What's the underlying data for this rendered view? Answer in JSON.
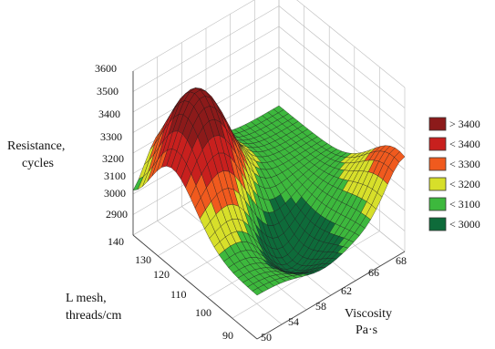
{
  "chart_data": {
    "type": "surface3d",
    "title": "",
    "zlabel_lines": [
      "Resistance,",
      "cycles"
    ],
    "ylabel_lines": [
      "L mesh,",
      "threads/cm"
    ],
    "xlabel_lines": [
      "Viscosity",
      "Pa·s"
    ],
    "z_ticks": [
      "3600",
      "3500",
      "3400",
      "3300",
      "3200",
      "3100",
      "3000",
      "2900"
    ],
    "y_ticks": [
      "140",
      "130",
      "120",
      "110",
      "100",
      "90"
    ],
    "x_ticks": [
      "50",
      "54",
      "58",
      "62",
      "66",
      "68"
    ],
    "xlim": [
      50,
      68
    ],
    "ylim": [
      90,
      140
    ],
    "zlim": [
      2850,
      3600
    ],
    "grid": true,
    "legend_position": "right",
    "legend": [
      {
        "label": "> 3400",
        "color": "#8c1a1a"
      },
      {
        "label": "< 3400",
        "color": "#c8201e"
      },
      {
        "label": "< 3300",
        "color": "#f05a1e"
      },
      {
        "label": "< 3200",
        "color": "#d7df2a"
      },
      {
        "label": "< 3100",
        "color": "#3db83d"
      },
      {
        "label": "< 3000",
        "color": "#0e6b3a"
      }
    ]
  }
}
